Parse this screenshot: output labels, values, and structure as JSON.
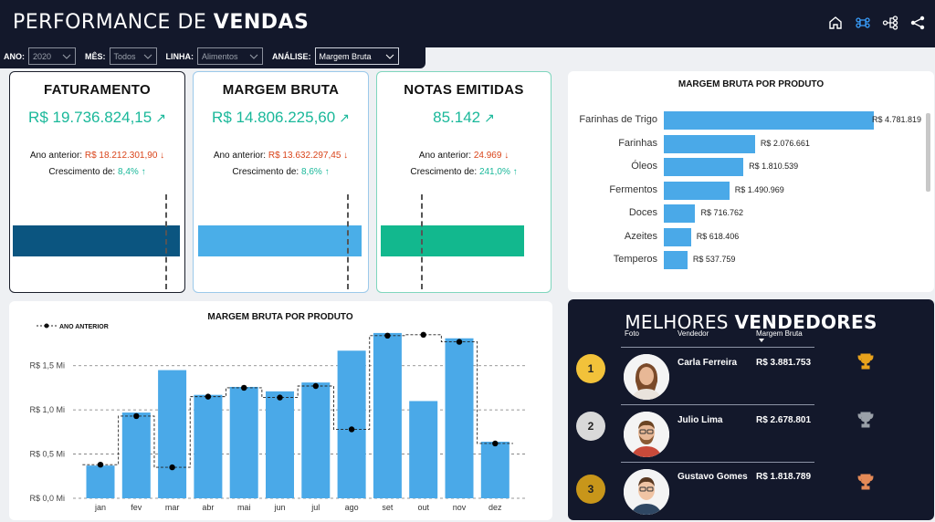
{
  "header": {
    "title_light": "PERFORMANCE DE ",
    "title_bold": "VENDAS",
    "icons": [
      "home-icon",
      "command-icon",
      "hierarchy-icon",
      "share-icon"
    ]
  },
  "filters": {
    "ano": {
      "label": "ANO:",
      "value": "2020"
    },
    "mes": {
      "label": "MÊS:",
      "value": "Todos"
    },
    "linha": {
      "label": "LINHA:",
      "value": "Alimentos"
    },
    "analise": {
      "label": "ANÁLISE:",
      "value": "Margem Bruta"
    }
  },
  "kpis": [
    {
      "title": "FATURAMENTO",
      "value": "R$ 19.736.824,15",
      "prev_label": "Ano anterior:",
      "prev_value": "R$ 18.212.301,90",
      "growth_label": "Crescimento de:",
      "growth_value": "8,4%",
      "color": "#0b5580",
      "bar_fraction": 0.92,
      "marker_fraction": 0.86
    },
    {
      "title": "MARGEM BRUTA",
      "value": "R$ 14.806.225,60",
      "prev_label": "Ano anterior:",
      "prev_value": "R$ 13.632.297,45",
      "growth_label": "Crescimento de:",
      "growth_value": "8,6%",
      "color": "#4aaee8",
      "bar_fraction": 0.92,
      "marker_fraction": 0.86
    },
    {
      "title": "NOTAS EMITIDAS",
      "value": "85.142",
      "prev_label": "Ano anterior:",
      "prev_value": "24.969",
      "growth_label": "Crescimento de:",
      "growth_value": "241,0%",
      "color": "#12b88e",
      "bar_fraction": 0.92,
      "marker_fraction": 0.25
    }
  ],
  "product_chart": {
    "title": "MARGEM BRUTA POR PRODUTO",
    "chart_data": {
      "type": "bar",
      "orientation": "horizontal",
      "categories": [
        "Farinhas de Trigo",
        "Farinhas",
        "Óleos",
        "Fermentos",
        "Doces",
        "Azeites",
        "Temperos"
      ],
      "values": [
        4781819,
        2076661,
        1810539,
        1490969,
        716762,
        618406,
        537759
      ],
      "labels": [
        "R$ 4.781.819",
        "R$ 2.076.661",
        "R$ 1.810.539",
        "R$ 1.490.969",
        "R$ 716.762",
        "R$ 618.406",
        "R$ 537.759"
      ],
      "color": "#4aa9e8"
    }
  },
  "monthly_chart": {
    "title": "MARGEM BRUTA POR PRODUTO",
    "legend": "ANO ANTERIOR",
    "chart_data": {
      "type": "bar",
      "categories": [
        "jan",
        "fev",
        "mar",
        "abr",
        "mai",
        "jun",
        "jul",
        "ago",
        "set",
        "out",
        "nov",
        "dez"
      ],
      "series": [
        {
          "name": "",
          "type": "bar",
          "values": [
            0.37,
            0.97,
            1.45,
            1.17,
            1.26,
            1.21,
            1.31,
            1.67,
            1.87,
            1.1,
            1.81,
            0.64
          ]
        },
        {
          "name": "ANO ANTERIOR",
          "type": "step-line",
          "values": [
            0.38,
            0.93,
            0.35,
            1.15,
            1.25,
            1.14,
            1.27,
            0.78,
            1.84,
            1.85,
            1.77,
            0.62
          ]
        }
      ],
      "yticks": [
        "R$ 0,0 Mi",
        "R$ 0,5 Mi",
        "R$ 1,0 Mi",
        "R$ 1,5 Mi"
      ],
      "ytick_values": [
        0,
        0.5,
        1.0,
        1.5
      ],
      "ylim": [
        0,
        1.9
      ],
      "bar_color": "#4aa9e8"
    }
  },
  "vendedores": {
    "title_light": "MELHORES ",
    "title_bold": "VENDEDORES",
    "col_foto": "Foto",
    "col_vendedor": "Vendedor",
    "col_margem": "Margem Bruta",
    "rows": [
      {
        "rank": "1",
        "name": "Carla Ferreira",
        "value": "R$ 3.881.753",
        "medal_color": "#f2c23a",
        "trophy_color": "#e8a21c"
      },
      {
        "rank": "2",
        "name": "Julio Lima",
        "value": "R$ 2.678.801",
        "medal_color": "#d9d9d9",
        "trophy_color": "#9aa0a8"
      },
      {
        "rank": "3",
        "name": "Gustavo Gomes",
        "value": "R$ 1.818.789",
        "medal_color": "#c8961a",
        "trophy_color": "#e58a57"
      }
    ]
  }
}
